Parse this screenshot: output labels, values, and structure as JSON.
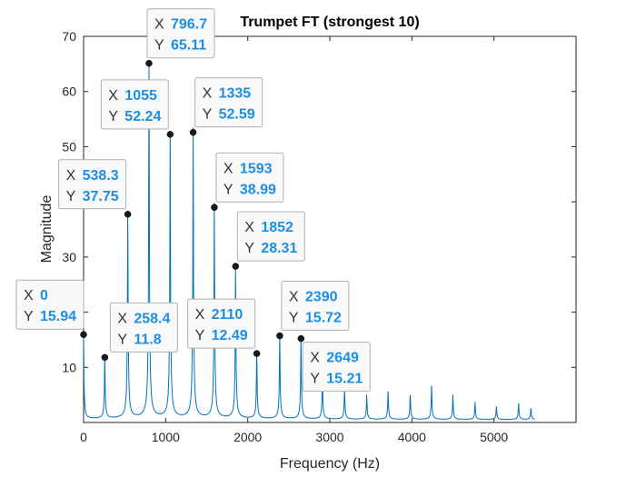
{
  "chart_data": {
    "type": "line",
    "title": "Trumpet FT (strongest 10)",
    "xlabel": "Frequency (Hz)",
    "ylabel": "Magnitude",
    "xlim": [
      0,
      6000
    ],
    "ylim": [
      0,
      70
    ],
    "x_ticks": [
      0,
      1000,
      2000,
      3000,
      4000,
      5000
    ],
    "y_ticks": [
      10,
      20,
      30,
      40,
      50,
      60,
      70
    ],
    "grid": false,
    "line_color": "#0072bd",
    "marker_color": "#1a1a1a",
    "tooltip_value_color": "#1a8fe3",
    "peaks": [
      {
        "x": 0,
        "y": 15.94
      },
      {
        "x": 258.4,
        "y": 11.8
      },
      {
        "x": 538.3,
        "y": 37.75
      },
      {
        "x": 796.7,
        "y": 65.11
      },
      {
        "x": 1055,
        "y": 52.24
      },
      {
        "x": 1335,
        "y": 52.59
      },
      {
        "x": 1593,
        "y": 38.99
      },
      {
        "x": 1852,
        "y": 28.31
      },
      {
        "x": 2110,
        "y": 12.49
      },
      {
        "x": 2390,
        "y": 15.72
      },
      {
        "x": 2649,
        "y": 15.21
      },
      {
        "x": 2910,
        "y": 8.2
      },
      {
        "x": 3180,
        "y": 6.2
      },
      {
        "x": 3450,
        "y": 4.5
      },
      {
        "x": 3710,
        "y": 5.5
      },
      {
        "x": 3980,
        "y": 4.8
      },
      {
        "x": 4240,
        "y": 6.5
      },
      {
        "x": 4500,
        "y": 4.5
      },
      {
        "x": 4770,
        "y": 3.2
      },
      {
        "x": 5030,
        "y": 2.6
      },
      {
        "x": 5300,
        "y": 3.2
      },
      {
        "x": 5450,
        "y": 2.2
      }
    ],
    "baseline": 0.5,
    "x_end": 5500,
    "datatips": [
      {
        "x_label": "X",
        "y_label": "Y",
        "x": "0",
        "y": "15.94"
      },
      {
        "x_label": "X",
        "y_label": "Y",
        "x": "258.4",
        "y": "11.8"
      },
      {
        "x_label": "X",
        "y_label": "Y",
        "x": "538.3",
        "y": "37.75"
      },
      {
        "x_label": "X",
        "y_label": "Y",
        "x": "796.7",
        "y": "65.11"
      },
      {
        "x_label": "X",
        "y_label": "Y",
        "x": "1055",
        "y": "52.24"
      },
      {
        "x_label": "X",
        "y_label": "Y",
        "x": "1335",
        "y": "52.59"
      },
      {
        "x_label": "X",
        "y_label": "Y",
        "x": "1593",
        "y": "38.99"
      },
      {
        "x_label": "X",
        "y_label": "Y",
        "x": "1852",
        "y": "28.31"
      },
      {
        "x_label": "X",
        "y_label": "Y",
        "x": "2110",
        "y": "12.49"
      },
      {
        "x_label": "X",
        "y_label": "Y",
        "x": "2390",
        "y": "15.72"
      },
      {
        "x_label": "X",
        "y_label": "Y",
        "x": "2649",
        "y": "15.21"
      }
    ]
  }
}
